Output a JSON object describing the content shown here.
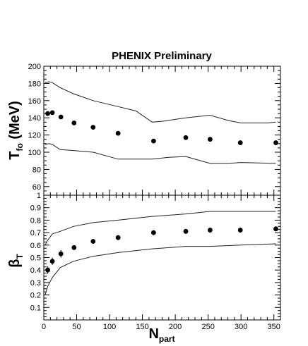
{
  "chart_data": {
    "title": "PHENIX Preliminary",
    "xlabel_main": "N",
    "xlabel_sub": "part",
    "xlim": [
      0,
      360
    ],
    "xticks": [
      0,
      50,
      100,
      150,
      200,
      250,
      300,
      350
    ],
    "xtick_labels": [
      "0",
      "50",
      "100",
      "150",
      "200",
      "250",
      "300",
      "350"
    ],
    "panels": [
      {
        "type": "scatter",
        "ylabel_main": "T",
        "ylabel_sub": "fo",
        "ylabel_unit": " (MeV)",
        "ylim": [
          50,
          200
        ],
        "yticks": [
          60,
          80,
          100,
          120,
          140,
          160,
          180,
          200
        ],
        "ytick_labels": [
          "60",
          "80",
          "100",
          "120",
          "140",
          "160",
          "180",
          "200"
        ],
        "points": [
          {
            "x": 6,
            "y": 145
          },
          {
            "x": 13,
            "y": 146
          },
          {
            "x": 26,
            "y": 141
          },
          {
            "x": 46,
            "y": 134
          },
          {
            "x": 75,
            "y": 129
          },
          {
            "x": 113,
            "y": 122
          },
          {
            "x": 167,
            "y": 113
          },
          {
            "x": 216,
            "y": 117
          },
          {
            "x": 253,
            "y": 115
          },
          {
            "x": 299,
            "y": 111
          },
          {
            "x": 353,
            "y": 111
          }
        ],
        "band_upper": [
          [
            2,
            181
          ],
          [
            8,
            182
          ],
          [
            13,
            181
          ],
          [
            25,
            175
          ],
          [
            45,
            168
          ],
          [
            75,
            160
          ],
          [
            113,
            153
          ],
          [
            140,
            148
          ],
          [
            165,
            135
          ],
          [
            180,
            136
          ],
          [
            216,
            140
          ],
          [
            253,
            143
          ],
          [
            280,
            137
          ],
          [
            300,
            134
          ],
          [
            340,
            134
          ],
          [
            353,
            135
          ]
        ],
        "band_lower": [
          [
            2,
            109
          ],
          [
            8,
            110
          ],
          [
            13,
            109
          ],
          [
            25,
            103
          ],
          [
            45,
            102
          ],
          [
            75,
            100
          ],
          [
            113,
            92
          ],
          [
            140,
            92
          ],
          [
            165,
            92
          ],
          [
            190,
            94
          ],
          [
            216,
            95
          ],
          [
            253,
            87
          ],
          [
            280,
            87
          ],
          [
            300,
            88
          ],
          [
            353,
            87
          ]
        ]
      },
      {
        "type": "scatter",
        "ylabel_main": "β",
        "ylabel_sub": "T",
        "ylabel_unit": "",
        "ylim": [
          0,
          1
        ],
        "yticks": [
          0.1,
          0.2,
          0.3,
          0.4,
          0.5,
          0.6,
          0.7,
          0.8,
          0.9,
          1
        ],
        "ytick_labels": [
          "0.1",
          "0.2",
          "0.3",
          "0.4",
          "0.5",
          "0.6",
          "0.7",
          "0.8",
          "0.9",
          "1"
        ],
        "points": [
          {
            "x": 6,
            "y": 0.4,
            "err": 0.03
          },
          {
            "x": 13,
            "y": 0.47,
            "err": 0.03
          },
          {
            "x": 26,
            "y": 0.53,
            "err": 0.03
          },
          {
            "x": 46,
            "y": 0.58,
            "err": 0.02
          },
          {
            "x": 75,
            "y": 0.63,
            "err": 0.02
          },
          {
            "x": 113,
            "y": 0.66,
            "err": 0.02
          },
          {
            "x": 167,
            "y": 0.7,
            "err": 0.02
          },
          {
            "x": 216,
            "y": 0.71,
            "err": 0.02
          },
          {
            "x": 253,
            "y": 0.72,
            "err": 0.02
          },
          {
            "x": 299,
            "y": 0.72,
            "err": 0.02
          },
          {
            "x": 353,
            "y": 0.73,
            "err": 0.02
          }
        ],
        "band_upper": [
          [
            2,
            0.6
          ],
          [
            6,
            0.64
          ],
          [
            13,
            0.69
          ],
          [
            25,
            0.71
          ],
          [
            45,
            0.75
          ],
          [
            75,
            0.78
          ],
          [
            113,
            0.8
          ],
          [
            165,
            0.83
          ],
          [
            216,
            0.85
          ],
          [
            253,
            0.87
          ],
          [
            300,
            0.87
          ],
          [
            353,
            0.87
          ]
        ],
        "band_lower": [
          [
            2,
            0.2
          ],
          [
            6,
            0.27
          ],
          [
            13,
            0.34
          ],
          [
            25,
            0.42
          ],
          [
            45,
            0.47
          ],
          [
            75,
            0.51
          ],
          [
            113,
            0.54
          ],
          [
            165,
            0.57
          ],
          [
            216,
            0.59
          ],
          [
            253,
            0.59
          ],
          [
            300,
            0.6
          ],
          [
            353,
            0.61
          ]
        ]
      }
    ]
  }
}
